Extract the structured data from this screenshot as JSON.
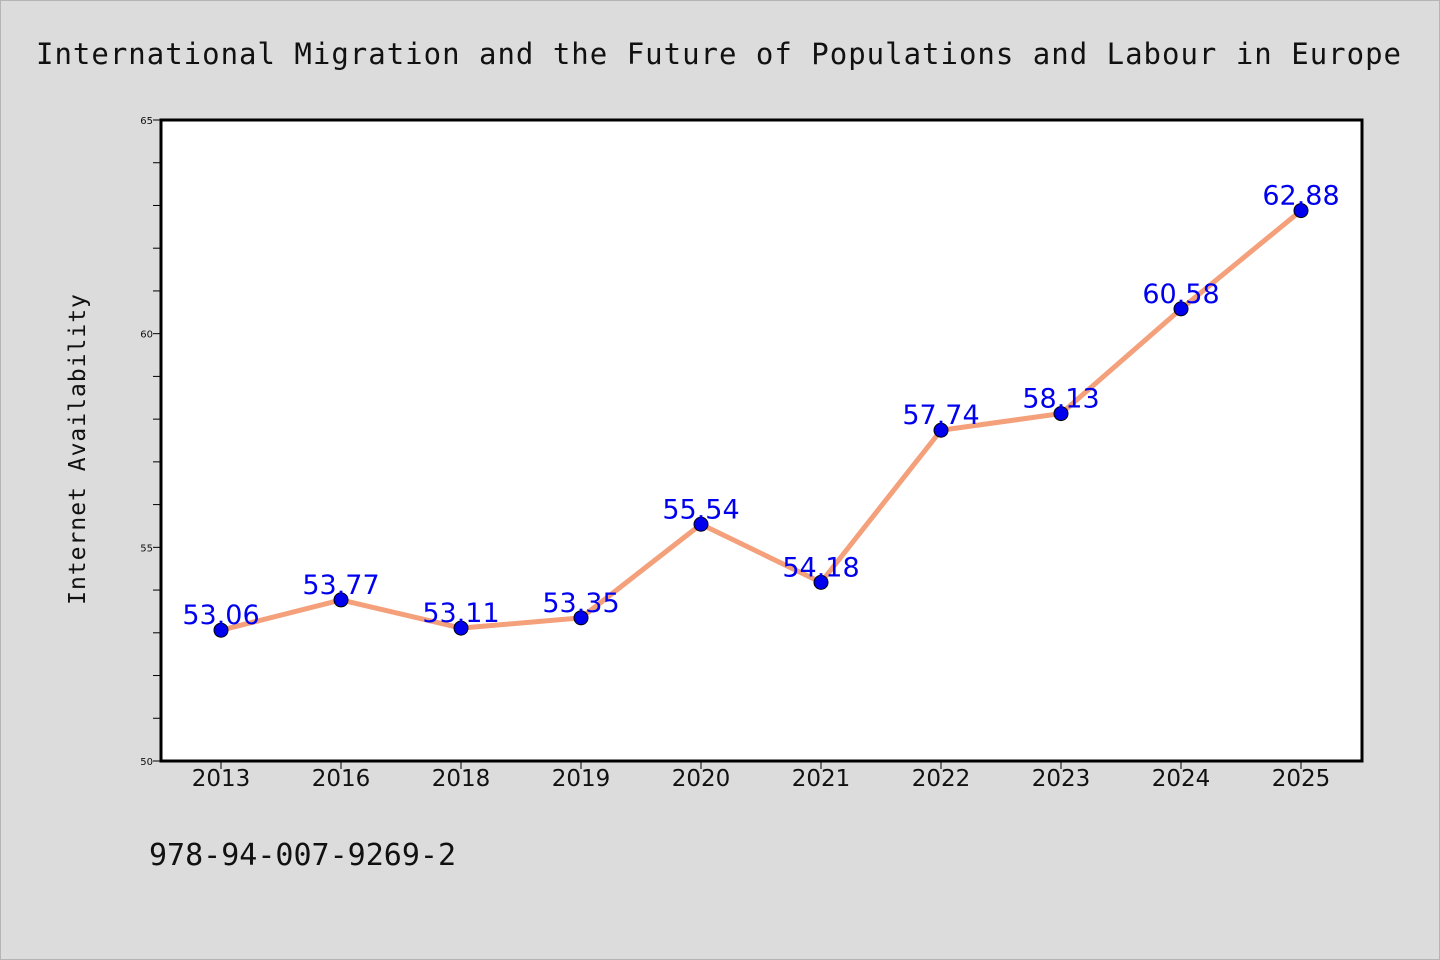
{
  "chart_data": {
    "type": "line",
    "title": "International Migration and the Future of Populations and Labour in Europe",
    "xlabel": "",
    "ylabel": "Internet Availability",
    "categories": [
      "2013",
      "2016",
      "2018",
      "2019",
      "2020",
      "2021",
      "2022",
      "2023",
      "2024",
      "2025"
    ],
    "series": [
      {
        "values": [
          53.06,
          53.77,
          53.11,
          53.35,
          55.54,
          54.18,
          57.74,
          58.13,
          60.58,
          62.88
        ],
        "labels": [
          "53.06",
          "53.77",
          "53.11",
          "53.35",
          "55.54",
          "54.18",
          "57.74",
          "58.13",
          "60.58",
          "62.88"
        ],
        "line_color": "#f4a07a",
        "marker_color": "#0000ee"
      }
    ],
    "ylim": [
      50,
      65
    ],
    "yticks": [
      "50",
      "55",
      "60",
      "65"
    ],
    "grid": false,
    "legend": "none"
  },
  "footer": {
    "isbn": "978-94-007-9269-2"
  },
  "colors": {
    "background": "#dcdcdc",
    "plot_background": "#ffffff",
    "line": "#f4a07a",
    "marker": "#0000ee",
    "data_label": "#0000ee"
  }
}
